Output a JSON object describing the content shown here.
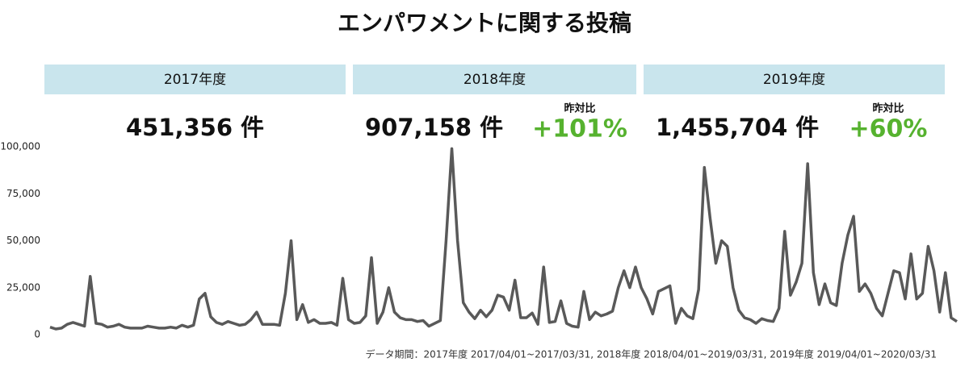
{
  "title": "エンパワメントに関する投稿",
  "panels": [
    {
      "header": "2017年度",
      "count": "451,356",
      "unit": "件"
    },
    {
      "header": "2018年度",
      "count": "907,158",
      "unit": "件",
      "yoy_label": "昨対比",
      "yoy": "+101%"
    },
    {
      "header": "2019年度",
      "count": "1,455,704",
      "unit": "件",
      "yoy_label": "昨対比",
      "yoy": "+60%"
    }
  ],
  "chart_data": {
    "type": "line",
    "color": "#595959",
    "values": [
      4000,
      3000,
      3500,
      5500,
      6500,
      5500,
      4500,
      31000,
      6000,
      5500,
      4000,
      4500,
      5500,
      4000,
      3500,
      3500,
      3500,
      4500,
      4000,
      3500,
      3500,
      4000,
      3500,
      5000,
      4000,
      5000,
      19000,
      22000,
      9500,
      6500,
      5500,
      7000,
      6000,
      5000,
      5500,
      8000,
      12000,
      5500,
      5500,
      5500,
      5000,
      22000,
      50000,
      8000,
      16000,
      6500,
      8000,
      6000,
      6000,
      6500,
      5000,
      30000,
      8000,
      6000,
      6500,
      10000,
      41000,
      6000,
      12000,
      25000,
      12000,
      9000,
      8000,
      8000,
      7000,
      7500,
      4500,
      6000,
      7500,
      50000,
      99000,
      50000,
      17000,
      12000,
      8500,
      13000,
      9500,
      13000,
      21000,
      20000,
      13000,
      29000,
      9000,
      9000,
      11500,
      5500,
      36000,
      6500,
      7000,
      18000,
      6000,
      4500,
      4000,
      23000,
      8000,
      12000,
      10000,
      11000,
      12500,
      25000,
      34000,
      25000,
      36000,
      25000,
      19000,
      11000,
      23000,
      24500,
      26000,
      6000,
      14000,
      10000,
      8500,
      24000,
      89000,
      62000,
      38000,
      50000,
      47000,
      25000,
      13000,
      9000,
      8000,
      6000,
      8500,
      7500,
      7000,
      14000,
      55000,
      21000,
      28000,
      38000,
      91000,
      33000,
      16000,
      27000,
      17000,
      15500,
      38000,
      53000,
      63000,
      23000,
      27000,
      22000,
      14000,
      10000,
      22000,
      34000,
      33000,
      19000,
      43000,
      19000,
      22000,
      47000,
      34000,
      12000,
      33000,
      9000,
      7000
    ],
    "ylim": [
      0,
      100000
    ],
    "yticks": [
      0,
      {
        "value": 25000,
        "label": "25,000"
      },
      {
        "value": 50000,
        "label": "50,000"
      },
      {
        "value": 75000,
        "label": "75,000"
      },
      {
        "value": 100000,
        "label": "100,000"
      }
    ],
    "grid": false,
    "note": "データ期間：2017年度 2017/04/01~2017/03/31, 2018年度 2018/04/01~2019/03/31, 2019年度 2019/04/01~2020/03/31"
  }
}
